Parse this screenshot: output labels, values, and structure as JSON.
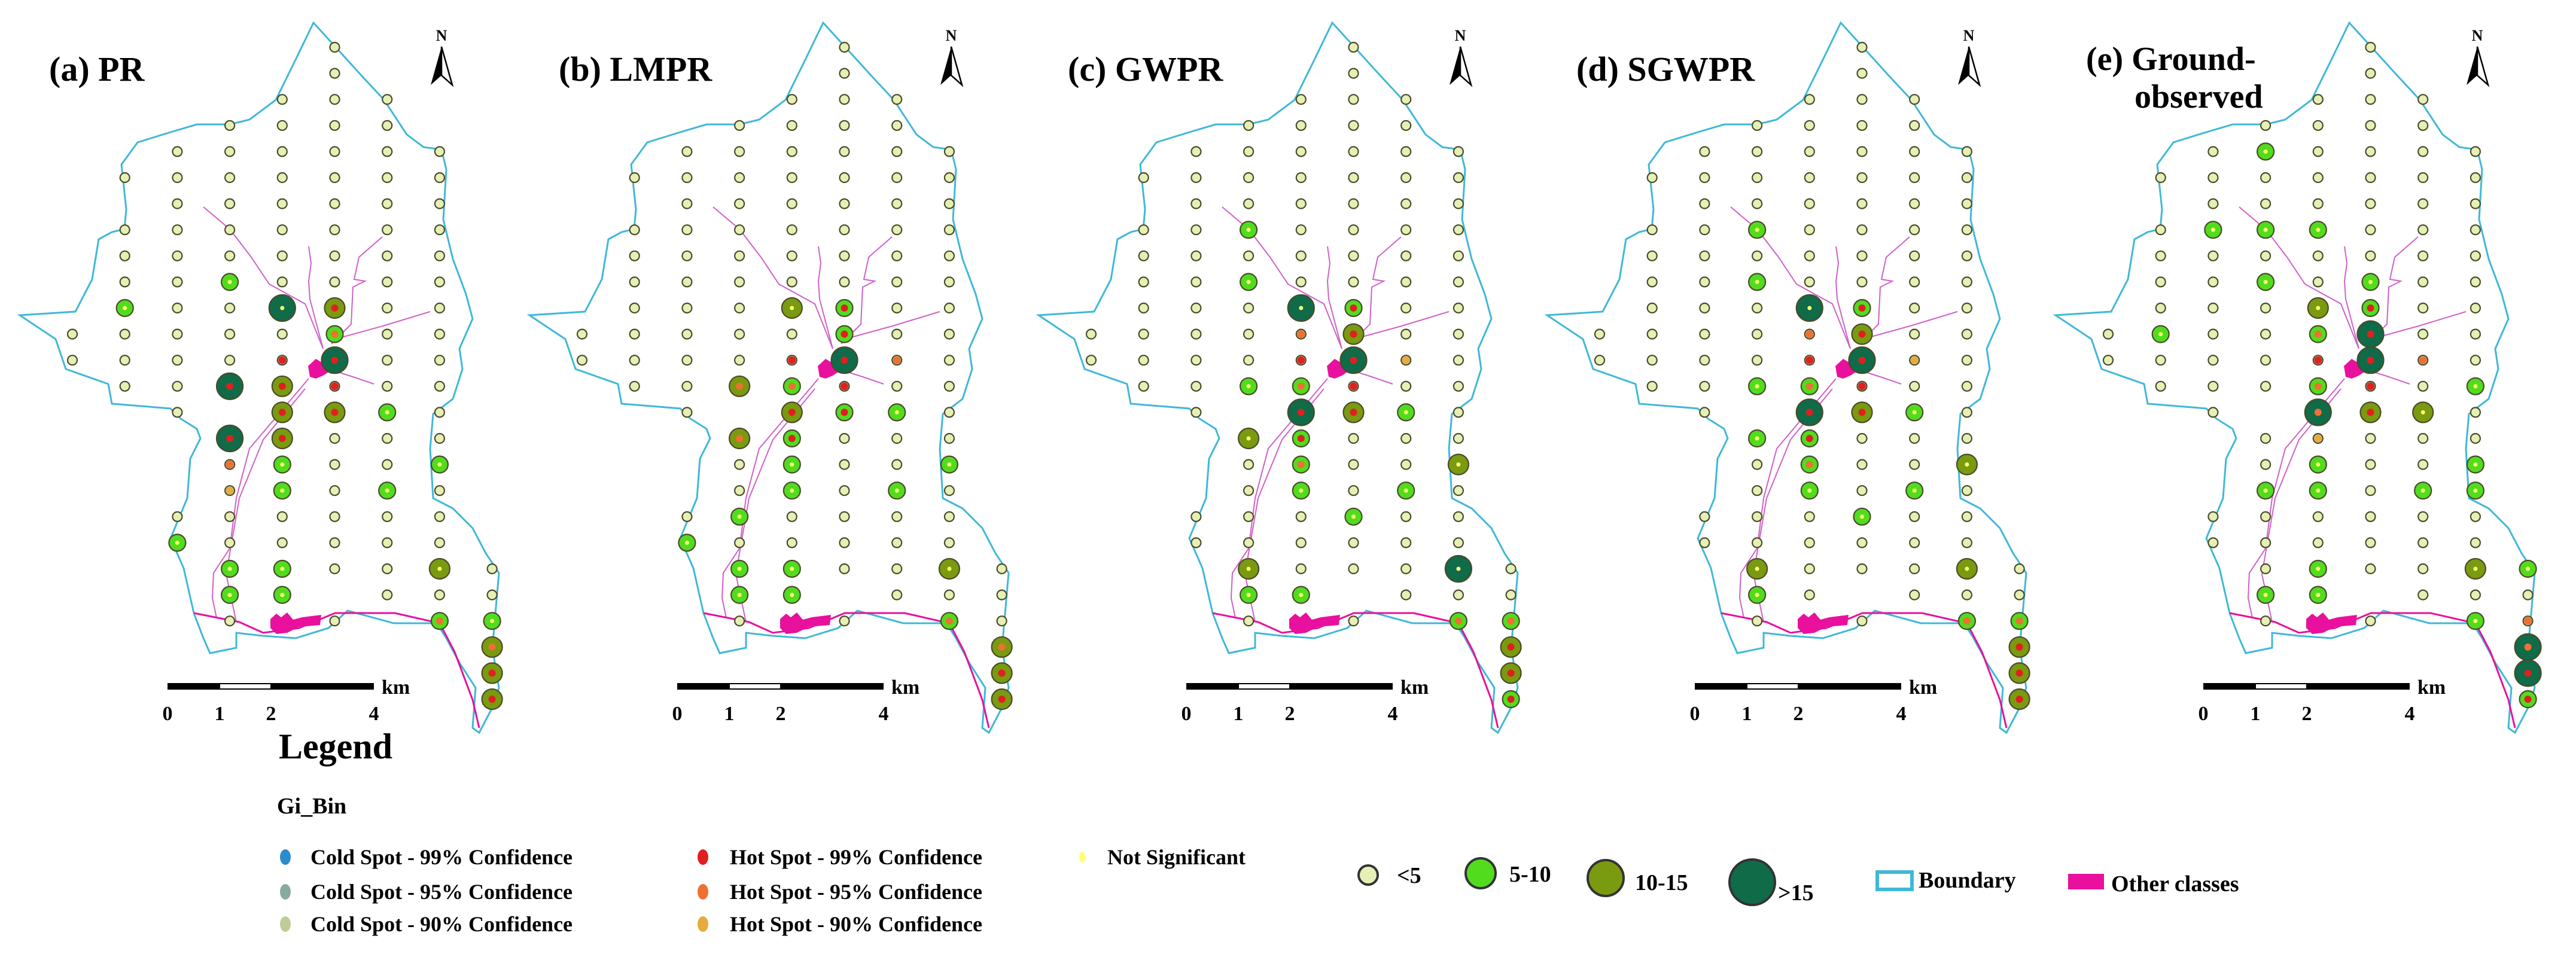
{
  "colors": {
    "boundary": "#3fb8d8",
    "other_classes": "#e8109c",
    "river": "#d060c8",
    "size_lt5": "#e6f0b4",
    "size_5_10": "#52dc1e",
    "size_10_15": "#7a9a10",
    "size_gt15": "#0f6b48",
    "hot99": "#e02020",
    "hot95": "#ee7032",
    "hot90": "#e8aa3c",
    "cold99": "#2a8ccc",
    "cold95": "#88aaa0",
    "cold90": "#c0cc98",
    "not_significant": "#ffff70"
  },
  "grid_code_legend": {
    "1": "<5",
    "2": "5-10",
    "3": "10-15",
    "4": ">15",
    "n": "Not Significant",
    "r": "Hot Spot - 99% Confidence",
    "o": "Hot Spot - 95% Confidence",
    "y": "Hot Spot - 90% Confidence"
  },
  "panels": [
    {
      "title": [
        "(a) PR"
      ],
      "north": "N",
      "grid": [
        ". . . . . 1n . . .",
        ". . . . . 1n . . .",
        ". . . . 1n 1n 1n . .",
        ". . . 1n 1n 1n 1n . .",
        ". . 1n 1n 1n 1n 1n 1n .",
        ". 1n 1n 1n 1n 1n 1n 1n .",
        ". . 1n 1n 1n 1n 1n 1n .",
        ". 1n 1n 1n 1n 1n 1n 1n .",
        ". 1n 1n 1n 1n 1n 1n 1n .",
        ". 1n 1n 2n 1n 1n 1n 1n .",
        ". 2n 1n 1n 4n 3r 1n 1n .",
        "1n 1n 1n 1n 1n 2o 1n 1n .",
        "1n 1n 1n 1n 1r 4r 1n 1n .",
        ". 1n 1n 4r 3r 1r 1n 1n .",
        ". . 1n . 3r 3r 2n 1n .",
        ". . . 4r 3r 1n 1n 1n .",
        ". . . 1o 2n 1n 1n 2n .",
        ". . . 1y 2n 1n 2n 1n .",
        ". . 1n 1n 1n 1n 1n 1n .",
        ". . 2n 1n 1n 1n 1n 1n .",
        ". . . 2n 2n 1n 1n 3n 1n",
        ". . . 2n 2n . 1n 1n 1n",
        ". . . 1n . 1n . 2o 2n",
        ". . . . . . . . 3o",
        ". . . . . . . . 3r",
        ". . . . . . . . 3r"
      ]
    },
    {
      "title": [
        "(b) LMPR"
      ],
      "north": "N",
      "grid": [
        ". . . . . 1n . . .",
        ". . . . . 1n . . .",
        ". . . . 1n 1n 1n . .",
        ". . . 1n 1n 1n 1n . .",
        ". . 1n 1n 1n 1n 1n 1n .",
        ". 1n 1n 1n 1n 1n 1n 1n .",
        ". . 1n 1n 1n 1n 1n 1n .",
        ". 1n 1n 1n 1n 1n 1n 1n .",
        ". 1n 1n 1n 1n 1n 1n 1n .",
        ". 1n 1n 1n 1n 1n 1n 1n .",
        ". 1n 1n 1n 3n 2r 1n 1n .",
        "1n 1n 1n 1n 1n 2r 1n 1n .",
        "1n 1n 1n 1n 1r 4r 1o 1n .",
        ". 1n 1n 3o 2o 1r 1n 1n .",
        ". . 1n . 3r 2r 2n 1n .",
        ". . . 3o 2r 1n 1n 1n .",
        ". . . 1n 2n 1n 1n 2n .",
        ". . . 1n 2n 1n 2n 1n .",
        ". . 1n 2n 1n 1n 1n 1n .",
        ". . 2n 1n 1n 1n 1n 1n .",
        ". . . 2n 2n 1n 1n 3n 1n",
        ". . . 2n 2n . 1n 1n 1n",
        ". . . 1n . 1n . 2o 1n",
        ". . . . . . . . 3o",
        ". . . . . . . . 3r",
        ". . . . . . . . 3r"
      ]
    },
    {
      "title": [
        "(c) GWPR"
      ],
      "north": "N",
      "grid": [
        ". . . . . 1n . . .",
        ". . . . . 1n . . .",
        ". . . . 1n 1n 1n . .",
        ". . . 1n 1n 1n 1n . .",
        ". . 1n 1n 1n 1n 1n 1n .",
        ". 1n 1n 1n 1n 1n 1n 1n .",
        ". . 1n 1n 1n 1n 1n 1n .",
        ". 1n 1n 2n 1n 1n 1n 1n .",
        ". 1n 1n 1n 1n 1n 1n 1n .",
        ". 1n 1n 2n 1n 1n 1n 1n .",
        ". 1n 1n 1n 4n 2r 1n 1n .",
        "1n 1n 1n 1n 1o 3r 1n 1n .",
        "1n 1n 1n 1n 1r 4r 1y 1n .",
        ". 1n 1n 2n 2o 1r 1n 1n .",
        ". . 1n . 4r 3r 2n 1n .",
        ". . . 3n 2r 1n 1n 1n .",
        ". . . 1n 2o 1n 1n 3n .",
        ". . . 1n 2n 1n 2n 1n .",
        ". . 1n 1n 1n 2n 1n 1n .",
        ". . 1n 1n 1n 1n 1n 1n .",
        ". . . 3n 1n 1n 1n 4n 1n",
        ". . . 2n 2n . 1n 1n 1n",
        ". . . 1n . 1n . 2o 2o",
        ". . . . . . . . 3r",
        ". . . . . . . . 3r",
        ". . . . . . . . 2r"
      ]
    },
    {
      "title": [
        "(d) SGWPR"
      ],
      "north": "N",
      "grid": [
        ". . . . . 1n . . .",
        ". . . . . 1n . . .",
        ". . . . 1n 1n 1n . .",
        ". . . 1n 1n 1n 1n . .",
        ". . 1n 1n 1n 1n 1n 1n .",
        ". 1n 1n 1n 1n 1n 1n 1n .",
        ". . 1n 1n 1n 1n 1n 1n .",
        ". 1n 1n 2n 1n 1n 1n 1n .",
        ". 1n 1n 1n 1n 1n 1n 1n .",
        ". 1n 1n 2n 1n 1n 1n 1n .",
        ". 1n 1n 1n 4n 2r 1n 1n .",
        "1n 1n 1n 1n 1o 3r 1n 1n .",
        "1n 1n 1n 1n 1r 4r 1y 1n .",
        ". 1n 1n 2n 2o 1r 1n 1n .",
        ". . 1n . 4r 3r 2n 1n .",
        ". . . 2n 2r 1n 1n 1n .",
        ". . . 1n 2o 1n 1n 3n .",
        ". . . 1n 2n 1n 2n 1n .",
        ". . 1n 1n 1n 2n 1n 1n .",
        ". . 1n 1n 1n 1n 1n 1n .",
        ". . . 3n 1n 1n 1n 3n 1n",
        ". . . 2n 1n . 1n 1n 1n",
        ". . . 1n . 1n . 2o 2o",
        ". . . . . . . . 3r",
        ". . . . . . . . 3r",
        ". . . . . . . . 3r"
      ]
    },
    {
      "title": [
        "(e) Ground-",
        "observed"
      ],
      "north": "N",
      "grid": [
        ". . . . . 1n . . .",
        ". . . . . 1n . . .",
        ". . . . 1n 1n 1n . .",
        ". . . 1n 1n 1n 1n . .",
        ". . 1n 2n 1n 1n 1n 1n .",
        ". 1n 1n 1n 1n 1n 1n 1n .",
        ". . 1n 1n 1n 1n 1n 1n .",
        ". 1n 2n 2n 2n 1n 1n 1n .",
        ". 1n 1n 1n 1n 1n 1n 1n .",
        ". 1n 1n 2n 1n 2n 1n 1n .",
        ". 1n 1n 1n 3n 2r 1n 1n .",
        "1n 2n 1n 1n 2o 4r 1n 1n .",
        "1n 1n 1n 1n 1r 4r 1o 1n .",
        ". 1n 1n 1n 2o 1r 1n 2n .",
        ". . 1n . 4o 3r 3n 1n .",
        ". . . 1n 1y 1n 1n 1n .",
        ". . . 1n 2n 1n 1n 2n .",
        ". . . 2n 2n 1n 2n 2n .",
        ". . 1n 1n 1n 1n 1n 1n .",
        ". . 1n 1n 1n 1n 1n 1n .",
        ". . . 1n 2n 1n 1n 3n 2n",
        ". . . 2n 2n . 1n 1n 1n",
        ". . . 1n . 1n . 2n 1o",
        ". . . . . . . . 4o",
        ". . . . . . . . 4r",
        ". . . . . . . . 2r"
      ]
    }
  ],
  "scale_bar": {
    "unit": "km",
    "ticks": [
      "0",
      "1",
      "2",
      "4"
    ]
  },
  "legend": {
    "title": "Legend",
    "gi_bin_title": "Gi_Bin",
    "gi_bin": [
      {
        "label": "Cold Spot - 99% Confidence",
        "key": "cold99"
      },
      {
        "label": "Cold Spot - 95% Confidence",
        "key": "cold95"
      },
      {
        "label": "Cold Spot - 90% Confidence",
        "key": "cold90"
      },
      {
        "label": "Hot Spot - 99% Confidence",
        "key": "hot99"
      },
      {
        "label": "Hot Spot - 95% Confidence",
        "key": "hot95"
      },
      {
        "label": "Hot Spot - 90% Confidence",
        "key": "hot90"
      },
      {
        "label": "Not Significant",
        "key": "not_significant"
      }
    ],
    "sizes": [
      "<5",
      "5-10",
      "10-15",
      ">15"
    ],
    "boundary": "Boundary",
    "other_classes": "Other classes"
  }
}
